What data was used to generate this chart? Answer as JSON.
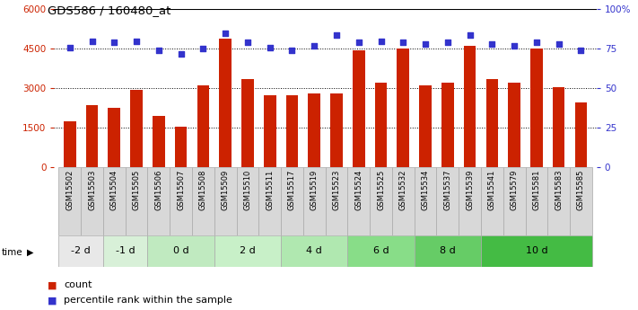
{
  "title": "GDS586 / 160480_at",
  "categories": [
    "GSM15502",
    "GSM15503",
    "GSM15504",
    "GSM15505",
    "GSM15506",
    "GSM15507",
    "GSM15508",
    "GSM15509",
    "GSM15510",
    "GSM15511",
    "GSM15517",
    "GSM15519",
    "GSM15523",
    "GSM15524",
    "GSM15525",
    "GSM15532",
    "GSM15534",
    "GSM15537",
    "GSM15539",
    "GSM15541",
    "GSM15579",
    "GSM15581",
    "GSM15583",
    "GSM15585"
  ],
  "counts": [
    1750,
    2350,
    2250,
    2950,
    1950,
    1550,
    3100,
    4900,
    3350,
    2750,
    2750,
    2800,
    2800,
    4450,
    3200,
    4500,
    3100,
    3200,
    4600,
    3350,
    3200,
    4500,
    3050,
    2450
  ],
  "percentiles": [
    76,
    80,
    79,
    80,
    74,
    72,
    75,
    85,
    79,
    76,
    74,
    77,
    84,
    79,
    80,
    79,
    78,
    79,
    84,
    78,
    77,
    79,
    78,
    74
  ],
  "time_groups": [
    {
      "label": "-2 d",
      "start": 0,
      "end": 2,
      "color": "#e8e8e8"
    },
    {
      "label": "-1 d",
      "start": 2,
      "end": 4,
      "color": "#d8f0d8"
    },
    {
      "label": "0 d",
      "start": 4,
      "end": 7,
      "color": "#c0eac0"
    },
    {
      "label": "2 d",
      "start": 7,
      "end": 10,
      "color": "#c8f0c8"
    },
    {
      "label": "4 d",
      "start": 10,
      "end": 13,
      "color": "#b0e8b0"
    },
    {
      "label": "6 d",
      "start": 13,
      "end": 16,
      "color": "#88dd88"
    },
    {
      "label": "8 d",
      "start": 16,
      "end": 19,
      "color": "#66cc66"
    },
    {
      "label": "10 d",
      "start": 19,
      "end": 24,
      "color": "#44bb44"
    }
  ],
  "bar_color": "#cc2200",
  "dot_color": "#3333cc",
  "ylim_left": [
    0,
    6000
  ],
  "ylim_right": [
    0,
    100
  ],
  "yticks_left": [
    0,
    1500,
    3000,
    4500,
    6000
  ],
  "ytick_labels_left": [
    "0",
    "1500",
    "3000",
    "4500",
    "6000"
  ],
  "yticks_right": [
    0,
    25,
    50,
    75,
    100
  ],
  "ytick_labels_right": [
    "0",
    "25",
    "50",
    "75",
    "100%"
  ],
  "legend_count": "count",
  "legend_pct": "percentile rank within the sample",
  "time_label": "time",
  "background_color": "#ffffff",
  "label_bg_color": "#d8d8d8",
  "grid_dotted_at": [
    1500,
    3000,
    4500
  ]
}
